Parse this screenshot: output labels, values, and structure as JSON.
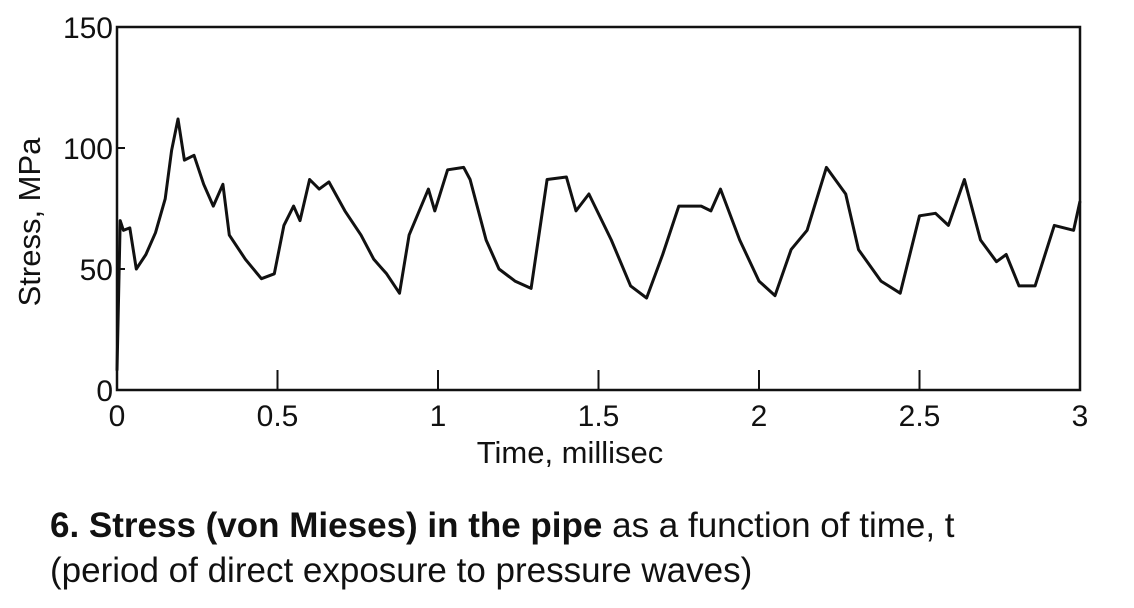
{
  "chart_data": {
    "type": "line",
    "xlabel": "Time, millisec",
    "ylabel": "Stress, MPa",
    "x": [
      0,
      0.01,
      0.02,
      0.04,
      0.06,
      0.09,
      0.12,
      0.15,
      0.17,
      0.19,
      0.21,
      0.24,
      0.27,
      0.3,
      0.33,
      0.35,
      0.4,
      0.45,
      0.49,
      0.52,
      0.55,
      0.57,
      0.6,
      0.63,
      0.66,
      0.71,
      0.76,
      0.8,
      0.84,
      0.88,
      0.91,
      0.97,
      0.99,
      1.03,
      1.08,
      1.1,
      1.15,
      1.19,
      1.24,
      1.29,
      1.34,
      1.4,
      1.43,
      1.47,
      1.54,
      1.6,
      1.65,
      1.7,
      1.75,
      1.82,
      1.85,
      1.88,
      1.94,
      2.0,
      2.05,
      2.1,
      2.15,
      2.21,
      2.27,
      2.31,
      2.38,
      2.44,
      2.5,
      2.55,
      2.59,
      2.64,
      2.69,
      2.74,
      2.77,
      2.81,
      2.86,
      2.92,
      2.98,
      3.0
    ],
    "values": [
      8,
      70,
      66,
      67,
      50,
      56,
      65,
      79,
      99,
      112,
      95,
      97,
      85,
      76,
      85,
      64,
      54,
      46,
      48,
      68,
      76,
      70,
      87,
      83,
      86,
      74,
      64,
      54,
      48,
      40,
      64,
      83,
      74,
      91,
      92,
      87,
      62,
      50,
      45,
      42,
      87,
      88,
      74,
      81,
      62,
      43,
      38,
      56,
      76,
      76,
      74,
      83,
      62,
      45,
      39,
      58,
      66,
      92,
      81,
      58,
      45,
      40,
      72,
      73,
      68,
      87,
      62,
      53,
      56,
      43,
      43,
      68,
      66,
      78
    ],
    "color": "#111111",
    "xlim": [
      0,
      3
    ],
    "xticks": [
      0,
      0.5,
      1,
      1.5,
      2,
      2.5,
      3
    ],
    "ylim": [
      0,
      150
    ],
    "yticks": [
      0,
      50,
      100,
      150
    ]
  },
  "caption": {
    "bold": "6. Stress (von Mieses) in the pipe",
    "rest": " as a function of time, t",
    "line2": "(period of direct exposure to pressure waves)"
  }
}
